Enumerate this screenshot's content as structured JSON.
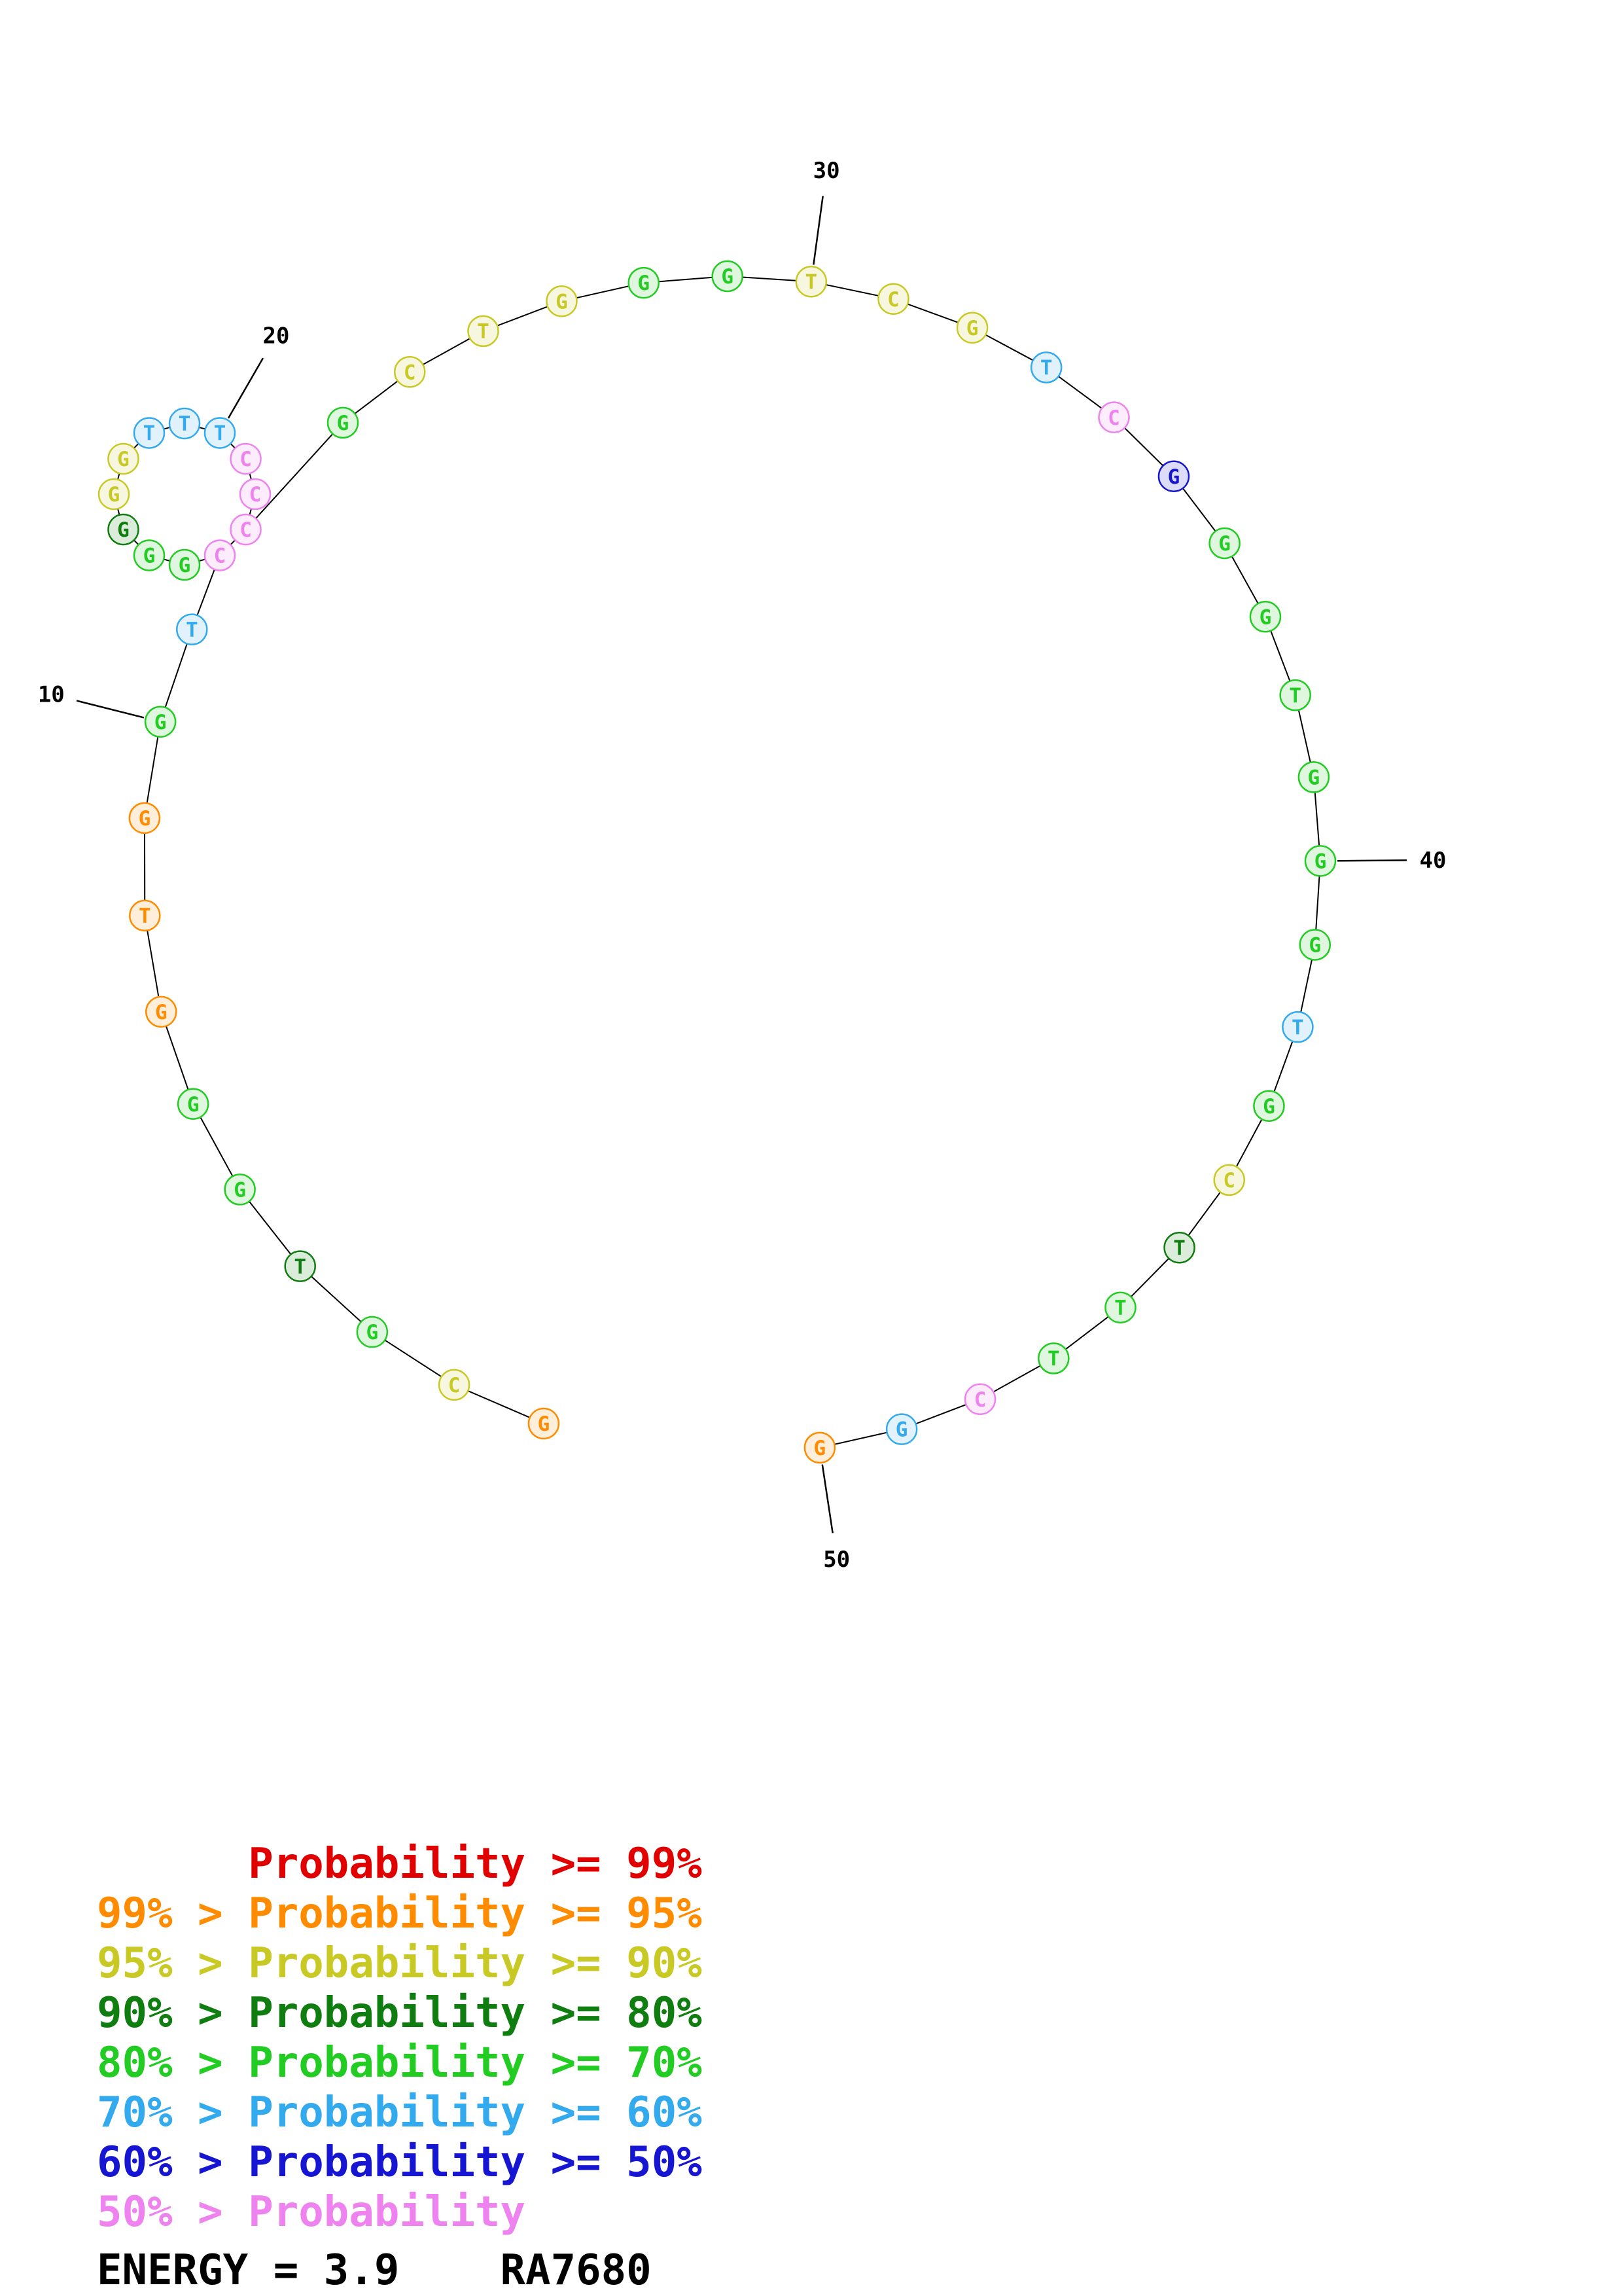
{
  "diagram": {
    "bases": [
      {
        "l": "G",
        "c": "p95"
      },
      {
        "l": "C",
        "c": "p90"
      },
      {
        "l": "G",
        "c": "p70"
      },
      {
        "l": "T",
        "c": "p80"
      },
      {
        "l": "G",
        "c": "p70"
      },
      {
        "l": "G",
        "c": "p70"
      },
      {
        "l": "G",
        "c": "p95"
      },
      {
        "l": "T",
        "c": "p95"
      },
      {
        "l": "G",
        "c": "p95"
      },
      {
        "l": "G",
        "c": "p70"
      },
      {
        "l": "T",
        "c": "p60"
      },
      {
        "l": "C",
        "c": "lt50"
      },
      {
        "l": "G",
        "c": "p70"
      },
      {
        "l": "G",
        "c": "p70"
      },
      {
        "l": "G",
        "c": "p80"
      },
      {
        "l": "G",
        "c": "p90"
      },
      {
        "l": "G",
        "c": "p90"
      },
      {
        "l": "T",
        "c": "p60"
      },
      {
        "l": "T",
        "c": "p60"
      },
      {
        "l": "T",
        "c": "p60"
      },
      {
        "l": "C",
        "c": "lt50"
      },
      {
        "l": "C",
        "c": "lt50"
      },
      {
        "l": "C",
        "c": "lt50"
      },
      {
        "l": "G",
        "c": "p70"
      },
      {
        "l": "C",
        "c": "p90"
      },
      {
        "l": "T",
        "c": "p90"
      },
      {
        "l": "G",
        "c": "p90"
      },
      {
        "l": "G",
        "c": "p70"
      },
      {
        "l": "G",
        "c": "p70"
      },
      {
        "l": "T",
        "c": "p90"
      },
      {
        "l": "C",
        "c": "p90"
      },
      {
        "l": "G",
        "c": "p90"
      },
      {
        "l": "T",
        "c": "p60"
      },
      {
        "l": "C",
        "c": "lt50"
      },
      {
        "l": "G",
        "c": "p50"
      },
      {
        "l": "G",
        "c": "p70"
      },
      {
        "l": "G",
        "c": "p70"
      },
      {
        "l": "T",
        "c": "p70"
      },
      {
        "l": "G",
        "c": "p70"
      },
      {
        "l": "G",
        "c": "p70"
      },
      {
        "l": "G",
        "c": "p70"
      },
      {
        "l": "T",
        "c": "p60"
      },
      {
        "l": "G",
        "c": "p70"
      },
      {
        "l": "C",
        "c": "p90"
      },
      {
        "l": "T",
        "c": "p80"
      },
      {
        "l": "T",
        "c": "p70"
      },
      {
        "l": "T",
        "c": "p70"
      },
      {
        "l": "C",
        "c": "lt50"
      },
      {
        "l": "G",
        "c": "p60"
      },
      {
        "l": "G",
        "c": "p95"
      }
    ],
    "pairs": [
      [
        12,
        23
      ]
    ],
    "ticks": [
      {
        "base": 10,
        "label": "10"
      },
      {
        "base": 20,
        "label": "20"
      },
      {
        "base": 30,
        "label": "30"
      },
      {
        "base": 40,
        "label": "40"
      },
      {
        "base": 50,
        "label": "50"
      }
    ],
    "colors": {
      "p99": "#e00000",
      "p95": "#ff8c00",
      "p90": "#c9c926",
      "p80": "#0f7d0f",
      "p70": "#22cc22",
      "p60": "#33aaee",
      "p50": "#1616d2",
      "lt50": "#ee82ee"
    }
  },
  "legend": {
    "items": [
      {
        "text": "      Probability >= 99%",
        "color": "#e00000"
      },
      {
        "text": "99% > Probability >= 95%",
        "color": "#ff8c00"
      },
      {
        "text": "95% > Probability >= 90%",
        "color": "#c9c926"
      },
      {
        "text": "90% > Probability >= 80%",
        "color": "#0f7d0f"
      },
      {
        "text": "80% > Probability >= 70%",
        "color": "#22cc22"
      },
      {
        "text": "70% > Probability >= 60%",
        "color": "#33aaee"
      },
      {
        "text": "60% > Probability >= 50%",
        "color": "#1616d2"
      },
      {
        "text": "50% > Probability",
        "color": "#ee82ee"
      }
    ]
  },
  "footer": {
    "energy": "ENERGY = 3.9    RA7680"
  }
}
